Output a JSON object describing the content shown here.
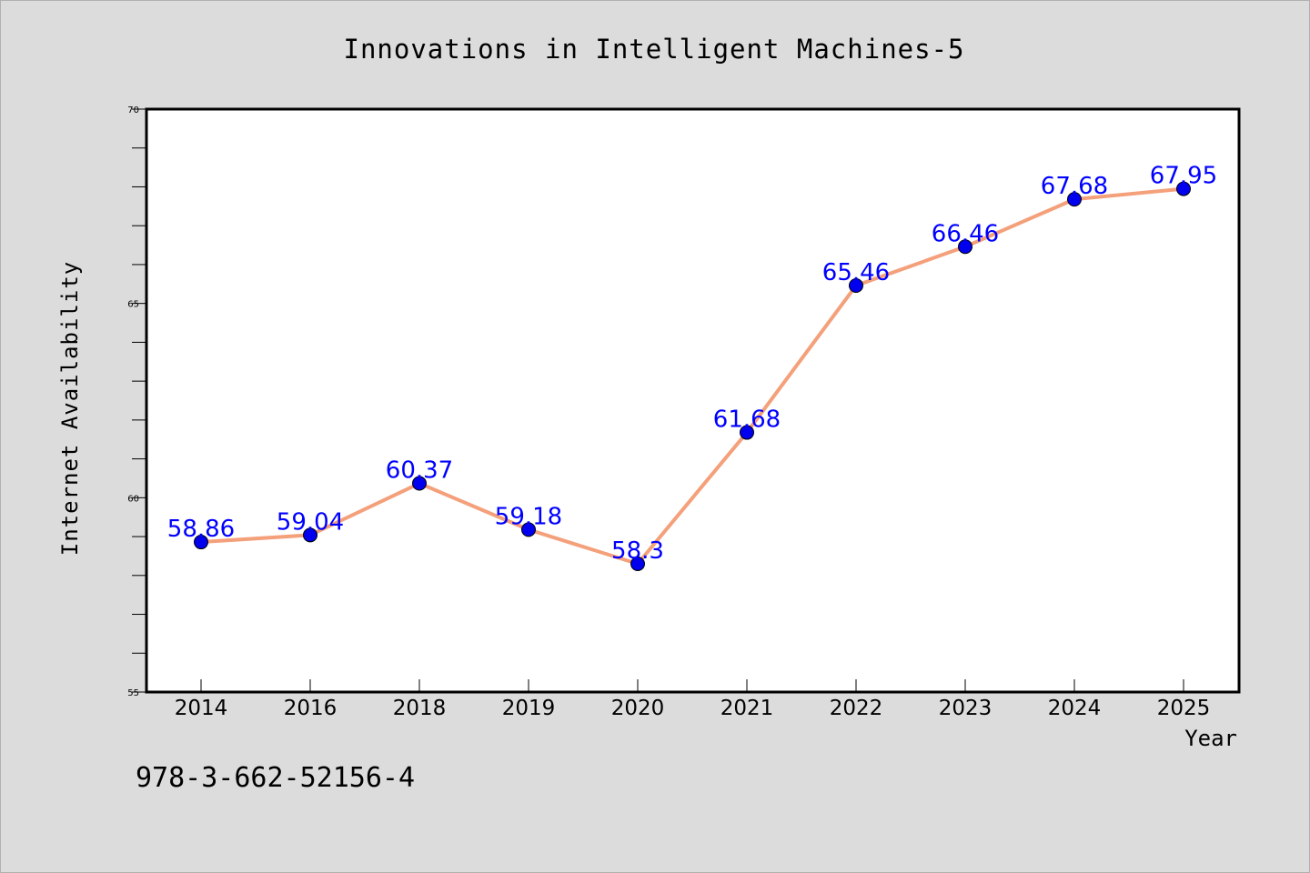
{
  "chart_data": {
    "type": "line",
    "title": "Innovations in Intelligent Machines-5",
    "xlabel": "Year",
    "ylabel": "Internet Availability",
    "categories": [
      "2014",
      "2016",
      "2018",
      "2019",
      "2020",
      "2021",
      "2022",
      "2023",
      "2024",
      "2025"
    ],
    "series": [
      {
        "values": [
          58.86,
          59.04,
          60.37,
          59.18,
          58.3,
          61.68,
          65.46,
          66.46,
          67.68,
          67.95
        ],
        "data_labels": [
          "58.86",
          "59.04",
          "60.37",
          "59.18",
          "58.3",
          "61.68",
          "65.46",
          "66.46",
          "67.68",
          "67.95"
        ]
      }
    ],
    "ylim": [
      55,
      70
    ],
    "yticks": [
      "55",
      "60",
      "65",
      "70"
    ],
    "grid": false,
    "colors": {
      "line": "#f4a07a",
      "marker": "#0000ee",
      "label": "#0000ff",
      "background": "#dcdcdc",
      "plot_area": "#ffffff"
    }
  },
  "footer_text": "978-3-662-52156-4"
}
